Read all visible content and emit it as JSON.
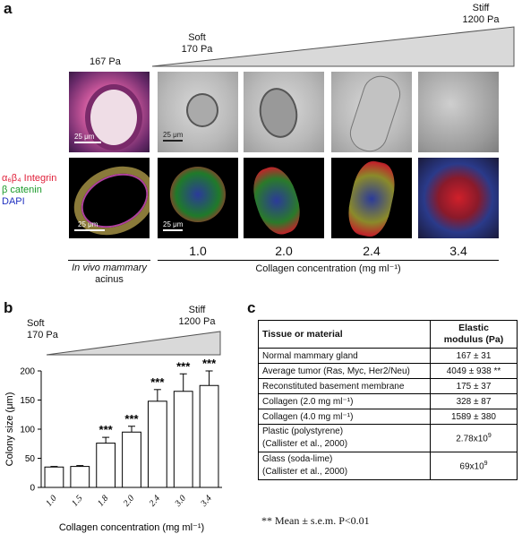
{
  "panel_a": {
    "letter": "a",
    "stiff_label": "Stiff",
    "stiff_value": "1200 Pa",
    "soft_label": "Soft",
    "soft_value": "170 Pa",
    "invivo_pa": "167 Pa",
    "scale_labels": [
      "25 μm",
      "25 μm",
      "25 μm",
      "25 μm"
    ],
    "stain_integrin": "α₆β₄ Integrin",
    "stain_catenin": "β catenin",
    "stain_dapi": "DAPI",
    "concentrations": [
      "1.0",
      "2.0",
      "2.4",
      "3.4"
    ],
    "invivo_caption": "In vivo mammary acinus",
    "invivo_caption_line1": "In vivo mammary",
    "invivo_caption_line2": "acinus",
    "collagen_caption": "Collagen  concentration (mg ml⁻¹)"
  },
  "panel_b": {
    "letter": "b",
    "soft_label": "Soft",
    "soft_value": "170 Pa",
    "stiff_label": "Stiff",
    "stiff_value": "1200 Pa",
    "significance": "***"
  },
  "panel_c": {
    "letter": "c",
    "header_material": "Tissue or material",
    "header_modulus_line1": "Elastic",
    "header_modulus_line2": "modulus (Pa)",
    "rows": [
      {
        "material": "Normal mammary gland",
        "modulus": "167 ± 31"
      },
      {
        "material": "Average tumor (Ras, Myc, Her2/Neu)",
        "modulus": "4049 ± 938 **"
      },
      {
        "material": "Reconstituted basement membrane",
        "modulus": "175 ± 37"
      },
      {
        "material": "Collagen (2.0 mg ml⁻¹)",
        "modulus": "328 ± 87"
      },
      {
        "material": "Collagen (4.0 mg ml⁻¹)",
        "modulus": "1589 ± 380"
      },
      {
        "material": "Plastic (polystyrene)",
        "material2": "(Callister et al., 2000)",
        "modulus": "2.78x10",
        "exp": "9"
      },
      {
        "material": "Glass (soda-lime)",
        "material2": "(Callister et al., 2000)",
        "modulus": "69x10",
        "exp": "9"
      }
    ],
    "footnote": "** Mean ± s.e.m. P<0.01"
  },
  "chart_data": {
    "type": "bar",
    "categories": [
      "1.0",
      "1.5",
      "1.8",
      "2.0",
      "2.4",
      "3.0",
      "3.4"
    ],
    "values": [
      35,
      36,
      76,
      95,
      148,
      165,
      175
    ],
    "errors": [
      1,
      1.5,
      10,
      10,
      20,
      30,
      25
    ],
    "significant": [
      false,
      false,
      true,
      true,
      true,
      true,
      true
    ],
    "xlabel": "Collagen  concentration (mg ml⁻¹)",
    "ylabel": "Colony size (μm)",
    "ylim": [
      0,
      200
    ],
    "yticks": [
      0,
      50,
      100,
      150,
      200
    ]
  }
}
